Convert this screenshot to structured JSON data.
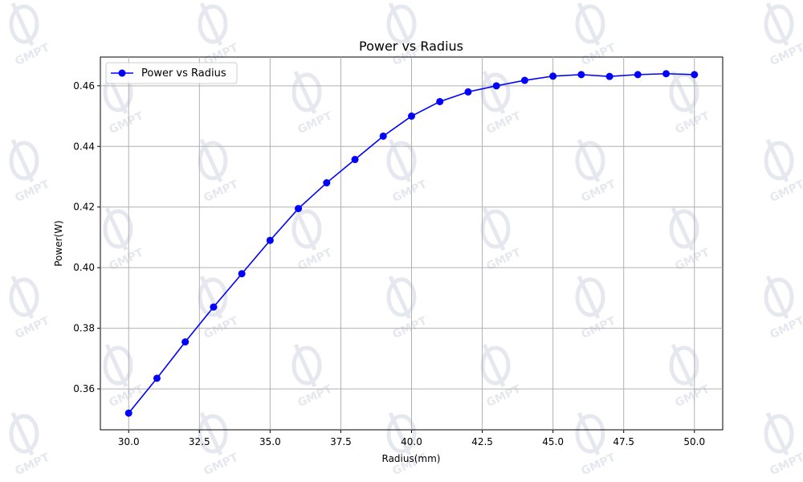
{
  "chart_data": {
    "type": "line",
    "title": "Power vs Radius",
    "xlabel": "Radius(mm)",
    "ylabel": "Power(W)",
    "xlim": [
      29.0,
      51.0
    ],
    "ylim": [
      0.3465,
      0.4695
    ],
    "xticks": [
      "30.0",
      "32.5",
      "35.0",
      "37.5",
      "40.0",
      "42.5",
      "45.0",
      "47.5",
      "50.0"
    ],
    "yticks": [
      "0.36",
      "0.38",
      "0.40",
      "0.42",
      "0.44",
      "0.46"
    ],
    "grid": true,
    "legend_position": "top-left",
    "series": [
      {
        "name": "Power vs Radius",
        "color": "#0000ff",
        "marker": "circle",
        "x": [
          30,
          31,
          32,
          33,
          34,
          35,
          36,
          37,
          38,
          39,
          40,
          41,
          42,
          43,
          44,
          45,
          46,
          47,
          48,
          49,
          50
        ],
        "y": [
          0.352,
          0.3635,
          0.3755,
          0.387,
          0.398,
          0.409,
          0.4195,
          0.428,
          0.4357,
          0.4434,
          0.45,
          0.4548,
          0.458,
          0.46,
          0.4618,
          0.4632,
          0.4637,
          0.4631,
          0.4637,
          0.464,
          0.4637
        ]
      }
    ]
  },
  "watermark": {
    "text": "GMPT",
    "icon": "droplet-logo-icon",
    "color": "#e6e8ef"
  }
}
